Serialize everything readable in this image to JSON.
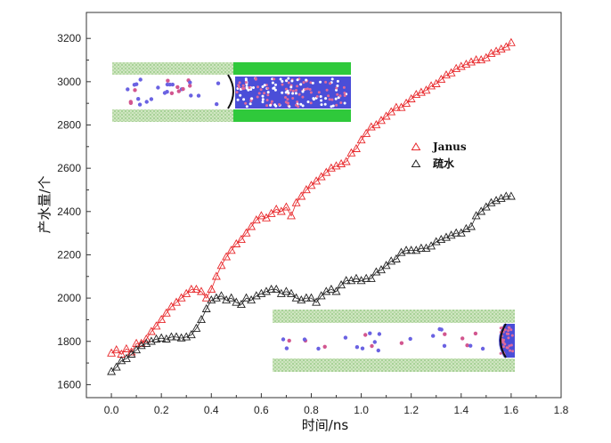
{
  "chart_data": {
    "type": "scatter",
    "title": "",
    "xlabel": "时间/ns",
    "ylabel": "产水量/个",
    "xlim": [
      -0.1,
      1.8
    ],
    "ylim": [
      1540,
      3320
    ],
    "x_ticks": [
      "0.0",
      "0.2",
      "0.4",
      "0.6",
      "0.8",
      "1.0",
      "1.2",
      "1.4",
      "1.6",
      "1.8"
    ],
    "y_ticks": [
      "1600",
      "1800",
      "2000",
      "2200",
      "2400",
      "2600",
      "2800",
      "3000",
      "3200"
    ],
    "grid": false,
    "legend_position": "right-middle",
    "marker": "open-triangle",
    "series": [
      {
        "name": "Janus",
        "color": "#e8282b",
        "x": [
          0.0,
          0.02,
          0.04,
          0.06,
          0.08,
          0.1,
          0.12,
          0.14,
          0.16,
          0.18,
          0.2,
          0.22,
          0.24,
          0.26,
          0.28,
          0.3,
          0.32,
          0.34,
          0.36,
          0.38,
          0.4,
          0.42,
          0.44,
          0.46,
          0.48,
          0.5,
          0.52,
          0.54,
          0.56,
          0.58,
          0.6,
          0.62,
          0.64,
          0.66,
          0.68,
          0.7,
          0.72,
          0.74,
          0.76,
          0.78,
          0.8,
          0.82,
          0.84,
          0.86,
          0.88,
          0.9,
          0.92,
          0.94,
          0.96,
          0.98,
          1.0,
          1.02,
          1.04,
          1.06,
          1.08,
          1.1,
          1.12,
          1.14,
          1.16,
          1.18,
          1.2,
          1.22,
          1.24,
          1.26,
          1.28,
          1.3,
          1.32,
          1.34,
          1.36,
          1.38,
          1.4,
          1.42,
          1.44,
          1.46,
          1.48,
          1.5,
          1.52,
          1.54,
          1.56,
          1.58,
          1.6
        ],
        "values": [
          1745,
          1760,
          1740,
          1765,
          1750,
          1790,
          1790,
          1810,
          1845,
          1870,
          1900,
          1930,
          1960,
          1980,
          2000,
          2020,
          2040,
          2040,
          2030,
          2000,
          2040,
          2100,
          2150,
          2190,
          2220,
          2250,
          2270,
          2300,
          2330,
          2360,
          2380,
          2370,
          2390,
          2410,
          2400,
          2420,
          2380,
          2440,
          2470,
          2500,
          2520,
          2540,
          2560,
          2580,
          2600,
          2610,
          2620,
          2630,
          2670,
          2690,
          2730,
          2760,
          2790,
          2800,
          2820,
          2840,
          2860,
          2880,
          2880,
          2900,
          2920,
          2940,
          2950,
          2960,
          2980,
          2990,
          3010,
          3030,
          3040,
          3060,
          3070,
          3080,
          3090,
          3100,
          3100,
          3110,
          3130,
          3140,
          3150,
          3160,
          3180
        ]
      },
      {
        "name": "疏水",
        "color": "#222222",
        "x": [
          0.0,
          0.02,
          0.04,
          0.06,
          0.08,
          0.1,
          0.12,
          0.14,
          0.16,
          0.18,
          0.2,
          0.22,
          0.24,
          0.26,
          0.28,
          0.3,
          0.32,
          0.34,
          0.36,
          0.38,
          0.4,
          0.42,
          0.44,
          0.46,
          0.48,
          0.5,
          0.52,
          0.54,
          0.56,
          0.58,
          0.6,
          0.62,
          0.64,
          0.66,
          0.68,
          0.7,
          0.72,
          0.74,
          0.76,
          0.78,
          0.8,
          0.82,
          0.84,
          0.86,
          0.88,
          0.9,
          0.92,
          0.94,
          0.96,
          0.98,
          1.0,
          1.02,
          1.04,
          1.06,
          1.08,
          1.1,
          1.12,
          1.14,
          1.16,
          1.18,
          1.2,
          1.22,
          1.24,
          1.26,
          1.28,
          1.3,
          1.32,
          1.34,
          1.36,
          1.38,
          1.4,
          1.42,
          1.44,
          1.46,
          1.48,
          1.5,
          1.52,
          1.54,
          1.56,
          1.58,
          1.6
        ],
        "values": [
          1660,
          1680,
          1710,
          1720,
          1740,
          1760,
          1780,
          1790,
          1800,
          1810,
          1815,
          1810,
          1820,
          1820,
          1815,
          1820,
          1830,
          1860,
          1900,
          1950,
          1990,
          2000,
          2010,
          1990,
          2000,
          1980,
          1970,
          2000,
          1990,
          2010,
          2020,
          2030,
          2040,
          2040,
          2020,
          2030,
          2020,
          2000,
          1990,
          2000,
          2000,
          1980,
          2010,
          2030,
          2040,
          2030,
          2060,
          2080,
          2080,
          2090,
          2080,
          2090,
          2090,
          2120,
          2130,
          2150,
          2170,
          2180,
          2210,
          2220,
          2220,
          2220,
          2230,
          2230,
          2240,
          2260,
          2270,
          2280,
          2290,
          2300,
          2300,
          2320,
          2330,
          2380,
          2400,
          2420,
          2440,
          2450,
          2460,
          2470,
          2470
        ]
      }
    ]
  }
}
